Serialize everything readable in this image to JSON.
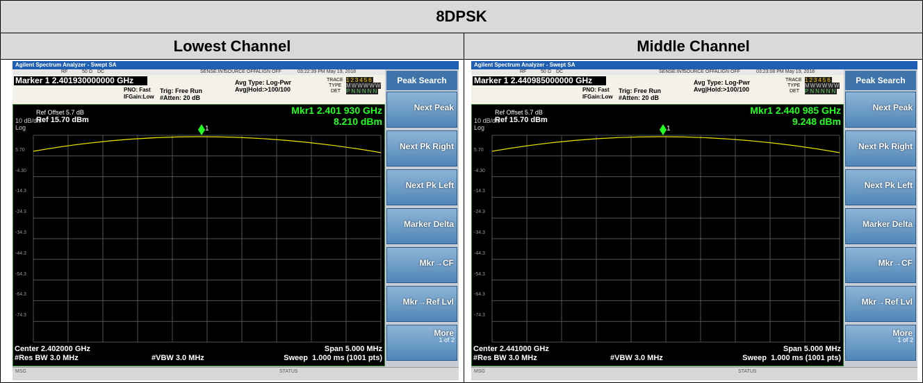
{
  "header": {
    "title": "8DPSK"
  },
  "columns": [
    "Lowest Channel",
    "Middle Channel"
  ],
  "panels": [
    {
      "app_title": "Agilent Spectrum Analyzer - Swept SA",
      "rf": "RF",
      "impedance": "50 Ω",
      "coupling": "DC",
      "sense": "SENSE:INT",
      "source": "SOURCE OFF",
      "align": "ALIGN OFF",
      "time": "03:22:39 PM May 19, 2018",
      "marker": "Marker 1 2.401930000000 GHz",
      "pno": "PNO: Fast",
      "ifgain": "IFGain:Low",
      "trig": "Trig: Free Run",
      "atten": "#Atten: 20 dB",
      "avg_type": "Avg Type: Log-Pwr",
      "avg_hold": "Avg|Hold:>100/100",
      "trace_label": "TRACE",
      "type_label": "TYPE",
      "det_label": "DET",
      "trace_nums": "123456",
      "trace_type": "MWWWWW",
      "trace_det": "PNNNNN",
      "ref_offset": "Ref Offset 5.7 dB",
      "scale": "10 dB/div",
      "ref": "Ref 15.70 dBm",
      "log": "Log",
      "mkr_freq": "Mkr1 2.401 930 GHz",
      "mkr_level": "8.210 dBm",
      "marker_id": "1",
      "y_labels": [
        "5.70",
        "-4.30",
        "-14.3",
        "-24.3",
        "-34.3",
        "-44.3",
        "-54.3",
        "-64.3",
        "-74.3"
      ],
      "center": "Center 2.402000 GHz",
      "span": "Span 5.000 MHz",
      "rbw": "#Res BW 3.0 MHz",
      "vbw": "#VBW 3.0 MHz",
      "sweep": "Sweep  1.000 ms (1001 pts)",
      "msg": "MSG",
      "status": "STATUS",
      "softkey_title": "Peak Search",
      "softkeys": [
        "Next Peak",
        "Next Pk Right",
        "Next Pk Left",
        "Marker Delta",
        "Mkr→CF",
        "Mkr→Ref Lvl",
        "More"
      ],
      "page": "1 of 2"
    },
    {
      "app_title": "Agilent Spectrum Analyzer - Swept SA",
      "rf": "RF",
      "impedance": "50 Ω",
      "coupling": "DC",
      "sense": "SENSE:INT",
      "source": "SOURCE OFF",
      "align": "ALIGN OFF",
      "time": "03:23:08 PM May 19, 2018",
      "marker": "Marker 1 2.440985000000 GHz",
      "pno": "PNO: Fast",
      "ifgain": "IFGain:Low",
      "trig": "Trig: Free Run",
      "atten": "#Atten: 20 dB",
      "avg_type": "Avg Type: Log-Pwr",
      "avg_hold": "Avg|Hold:>100/100",
      "trace_label": "TRACE",
      "type_label": "TYPE",
      "det_label": "DET",
      "trace_nums": "123456",
      "trace_type": "MWWWWW",
      "trace_det": "PNNNNN",
      "ref_offset": "Ref Offset 5.7 dB",
      "scale": "10 dB/div",
      "ref": "Ref 15.70 dBm",
      "log": "Log",
      "mkr_freq": "Mkr1 2.440 985 GHz",
      "mkr_level": "9.248 dBm",
      "marker_id": "1",
      "y_labels": [
        "5.70",
        "-4.30",
        "-14.3",
        "-24.3",
        "-34.3",
        "-44.3",
        "-54.3",
        "-64.3",
        "-74.3"
      ],
      "center": "Center 2.441000 GHz",
      "span": "Span 5.000 MHz",
      "rbw": "#Res BW 3.0 MHz",
      "vbw": "#VBW 3.0 MHz",
      "sweep": "Sweep  1.000 ms (1001 pts)",
      "msg": "MSG",
      "status": "STATUS",
      "softkey_title": "Peak Search",
      "softkeys": [
        "Next Peak",
        "Next Pk Right",
        "Next Pk Left",
        "Marker Delta",
        "Mkr→CF",
        "Mkr→Ref Lvl",
        "More"
      ],
      "page": "1 of 2"
    }
  ]
}
